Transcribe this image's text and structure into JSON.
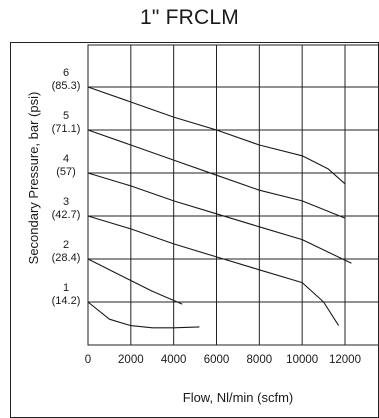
{
  "chart_data": {
    "type": "line",
    "title": "1\" FRCLM",
    "xlabel": "Flow, Nl/min (scfm)",
    "ylabel": "Secondary Pressure, bar (psi)",
    "xlim": [
      0,
      12000
    ],
    "ylim": [
      0,
      7
    ],
    "grid": true,
    "x_ticks": [
      "0",
      "2000",
      "4000",
      "6000",
      "8000",
      "10000",
      "12000"
    ],
    "y_ticks": [
      {
        "value": 1,
        "bar": "1",
        "psi": "(14.2)"
      },
      {
        "value": 2,
        "bar": "2",
        "psi": "(28.4)"
      },
      {
        "value": 3,
        "bar": "3",
        "psi": "(42.7)"
      },
      {
        "value": 4,
        "bar": "4",
        "psi": "(57)"
      },
      {
        "value": 5,
        "bar": "5",
        "psi": "(71.1)"
      },
      {
        "value": 6,
        "bar": "6",
        "psi": "(85.3)"
      }
    ],
    "series": [
      {
        "x": [
          0,
          1000,
          2000,
          3000,
          4000,
          5200
        ],
        "y": [
          1.0,
          0.6,
          0.45,
          0.4,
          0.4,
          0.42
        ]
      },
      {
        "x": [
          0,
          1000,
          2000,
          3000,
          4400
        ],
        "y": [
          2.0,
          1.75,
          1.5,
          1.25,
          0.95
        ]
      },
      {
        "x": [
          0,
          2000,
          4000,
          6000,
          8000,
          10000,
          11000,
          11700
        ],
        "y": [
          3.0,
          2.7,
          2.35,
          2.05,
          1.75,
          1.45,
          1.0,
          0.45
        ]
      },
      {
        "x": [
          0,
          2000,
          4000,
          6000,
          8000,
          10000,
          12300
        ],
        "y": [
          4.0,
          3.7,
          3.35,
          3.05,
          2.75,
          2.45,
          1.9
        ]
      },
      {
        "x": [
          0,
          2000,
          4000,
          6000,
          8000,
          10000,
          12000
        ],
        "y": [
          5.0,
          4.65,
          4.3,
          3.95,
          3.6,
          3.35,
          2.95
        ]
      },
      {
        "x": [
          0,
          2000,
          4000,
          6000,
          8000,
          10000,
          11200,
          12000
        ],
        "y": [
          6.0,
          5.65,
          5.3,
          5.0,
          4.65,
          4.4,
          4.1,
          3.75
        ]
      }
    ]
  }
}
